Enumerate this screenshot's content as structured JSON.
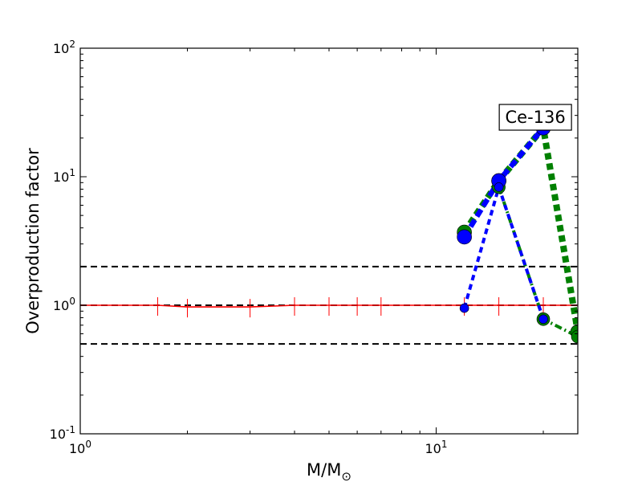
{
  "chart_data": {
    "type": "line",
    "title": "",
    "xlabel": "M/M",
    "xlabel_sub": "⊙",
    "ylabel": "Overproduction factor",
    "xscale": "log",
    "yscale": "log",
    "xlim": [
      1,
      25
    ],
    "ylim": [
      0.1,
      100
    ],
    "x_ticks": [
      {
        "value": 1,
        "base": "10",
        "exp": "0"
      },
      {
        "value": 10,
        "base": "10",
        "exp": "1"
      }
    ],
    "y_ticks": [
      {
        "value": 0.1,
        "base": "10",
        "exp": "-1"
      },
      {
        "value": 1,
        "base": "10",
        "exp": "0"
      },
      {
        "value": 10,
        "base": "10",
        "exp": "1"
      },
      {
        "value": 100,
        "base": "10",
        "exp": "2"
      }
    ],
    "grid": false,
    "legend": "none",
    "annotation": {
      "text": "Ce-136",
      "x": 19.0,
      "y": 29
    },
    "reference_lines": [
      {
        "y": 2.0,
        "color": "#000000",
        "style": "dashed"
      },
      {
        "y": 1.0,
        "color": "#000000",
        "style": "dashed"
      },
      {
        "y": 0.5,
        "color": "#000000",
        "style": "dashed"
      }
    ],
    "series": [
      {
        "style": "red-solid-errorbars",
        "color": "#ff0000",
        "x": [
          1.0,
          1.65,
          2.0,
          3.0,
          4.0,
          5.0,
          6.0,
          7.0,
          12.0,
          15.0,
          20.0,
          25.0
        ],
        "y": [
          1.0,
          1.0,
          0.97,
          0.97,
          1.0,
          1.0,
          1.0,
          1.0,
          1.0,
          1.0,
          1.0,
          1.0
        ]
      },
      {
        "style": "green-thick-dotted",
        "color": "#008000",
        "x": [
          12.0,
          15.0,
          20.0,
          25.0
        ],
        "y": [
          3.7,
          9.3,
          24.0,
          0.62
        ]
      },
      {
        "style": "blue-thick-dashed",
        "color": "#0000ff",
        "x": [
          12.0,
          15.0,
          20.0
        ],
        "y": [
          3.4,
          9.3,
          24.0
        ]
      },
      {
        "style": "green-dashdot",
        "color": "#008000",
        "x": [
          15.0,
          20.0,
          25.0
        ],
        "y": [
          8.3,
          0.78,
          0.57
        ]
      },
      {
        "style": "blue-dashed-thin",
        "color": "#0000ff",
        "x": [
          12.0,
          15.0,
          20.0
        ],
        "y": [
          0.95,
          8.3,
          0.78
        ]
      }
    ]
  }
}
